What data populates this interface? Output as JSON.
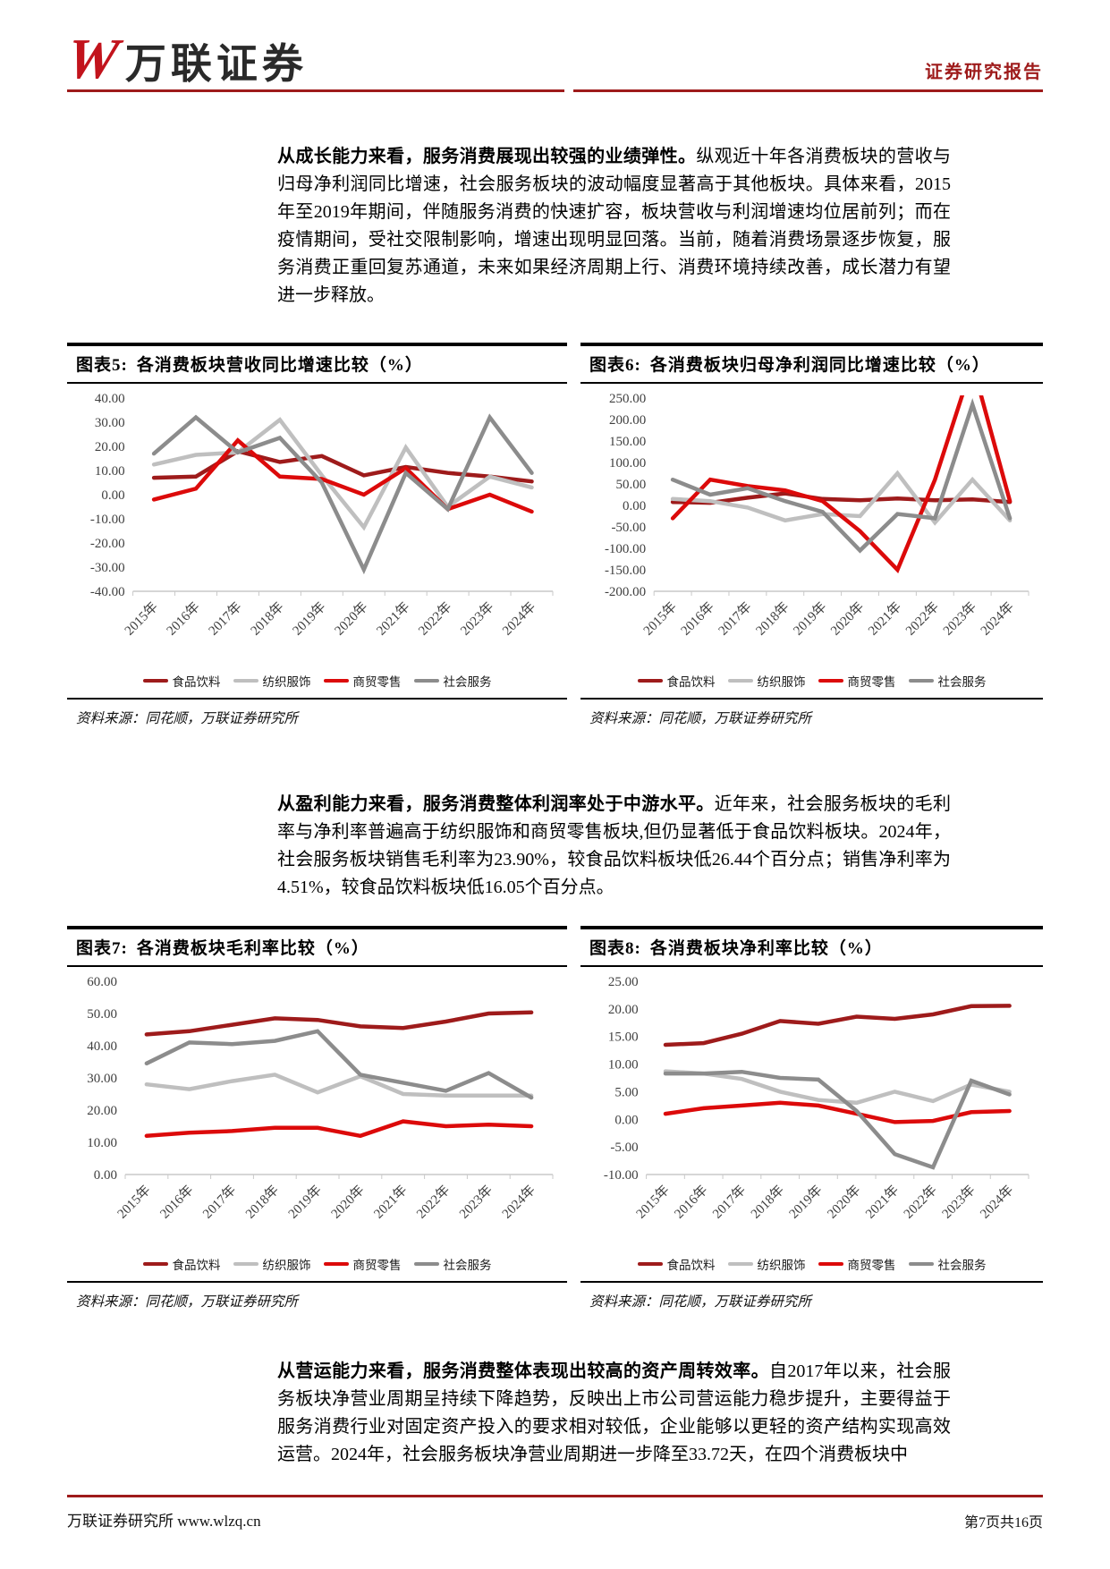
{
  "header": {
    "logo_mark": "W",
    "logo_text": "万联证券",
    "report_type": "证券研究报告"
  },
  "paragraphs": [
    {
      "bold": "从成长能力来看，服务消费展现出较强的业绩弹性。",
      "rest": "纵观近十年各消费板块的营收与归母净利润同比增速，社会服务板块的波动幅度显著高于其他板块。具体来看，2015年至2019年期间，伴随服务消费的快速扩容，板块营收与利润增速均位居前列；而在疫情期间，受社交限制影响，增速出现明显回落。当前，随着消费场景逐步恢复，服务消费正重回复苏通道，未来如果经济周期上行、消费环境持续改善，成长潜力有望进一步释放。"
    },
    {
      "bold": "从盈利能力来看，服务消费整体利润率处于中游水平。",
      "rest": "近年来，社会服务板块的毛利率与净利率普遍高于纺织服饰和商贸零售板块,但仍显著低于食品饮料板块。2024年，社会服务板块销售毛利率为23.90%，较食品饮料板块低26.44个百分点；销售净利率为4.51%，较食品饮料板块低16.05个百分点。"
    },
    {
      "bold": "从营运能力来看，服务消费整体表现出较高的资产周转效率。",
      "rest": "自2017年以来，社会服务板块净营业周期呈持续下降趋势，反映出上市公司营运能力稳步提升，主要得益于服务消费行业对固定资产投入的要求相对较低，企业能够以更轻的资产结构实现高效运营。2024年，社会服务板块净营业周期进一步降至33.72天，在四个消费板块中"
    }
  ],
  "figures": [
    {
      "label": "图表5:",
      "title": "各消费板块营收同比增速比较（%）",
      "source_label": "资料来源：",
      "source": "同花顺，万联证券研究所"
    },
    {
      "label": "图表6:",
      "title": "各消费板块归母净利润同比增速比较（%）",
      "source_label": "资料来源：",
      "source": "同花顺，万联证券研究所"
    },
    {
      "label": "图表7:",
      "title": "各消费板块毛利率比较（%）",
      "source_label": "资料来源：",
      "source": "同花顺，万联证券研究所"
    },
    {
      "label": "图表8:",
      "title": "各消费板块净利率比较（%）",
      "source_label": "资料来源：",
      "source": "同花顺，万联证券研究所"
    }
  ],
  "colors": {
    "food_dark_red": "#9e1b1b",
    "textile_light_gray": "#bfbfbf",
    "trade_bright_red": "#dc0a0a",
    "social_dark_gray": "#8c8c8c",
    "rule_maroon": "#9e1b1b",
    "axis_gray": "#c9c9c9"
  },
  "chart_data": [
    {
      "type": "line",
      "title": "各消费板块营收同比增速比较（%）",
      "categories": [
        "2015年",
        "2016年",
        "2017年",
        "2018年",
        "2019年",
        "2020年",
        "2021年",
        "2022年",
        "2023年",
        "2024年"
      ],
      "series": [
        {
          "name": "食品饮料",
          "color": "#9e1b1b",
          "values": [
            7,
            7.5,
            18,
            13.5,
            16,
            8,
            11.5,
            9,
            7.5,
            5.5
          ]
        },
        {
          "name": "纺织服饰",
          "color": "#bfbfbf",
          "values": [
            12.5,
            16.5,
            17.5,
            31,
            8,
            -13.5,
            19.5,
            -5,
            7.5,
            3
          ]
        },
        {
          "name": "商贸零售",
          "color": "#dc0a0a",
          "values": [
            -2,
            2.5,
            22.5,
            7.5,
            6.5,
            0,
            11,
            -6,
            0,
            -7
          ]
        },
        {
          "name": "社会服务",
          "color": "#8c8c8c",
          "values": [
            17,
            32,
            17.5,
            23.5,
            5,
            -31,
            9,
            -6,
            32,
            9
          ]
        }
      ],
      "ylim": [
        -40,
        40
      ],
      "ytick_step": 10,
      "grid": false,
      "legend_position": "bottom"
    },
    {
      "type": "line",
      "title": "各消费板块归母净利润同比增速比较（%）",
      "categories": [
        "2015年",
        "2016年",
        "2017年",
        "2018年",
        "2019年",
        "2020年",
        "2021年",
        "2022年",
        "2023年",
        "2024年"
      ],
      "series": [
        {
          "name": "食品饮料",
          "color": "#9e1b1b",
          "values": [
            8,
            6,
            18,
            28,
            15,
            12,
            16,
            12,
            14,
            8
          ]
        },
        {
          "name": "纺织服饰",
          "color": "#bfbfbf",
          "values": [
            15,
            10,
            -5,
            -35,
            -20,
            -25,
            75,
            -40,
            60,
            -35
          ]
        },
        {
          "name": "商贸零售",
          "color": "#dc0a0a",
          "values": [
            -30,
            60,
            45,
            35,
            10,
            -60,
            -150,
            60,
            330,
            10
          ]
        },
        {
          "name": "社会服务",
          "color": "#8c8c8c",
          "values": [
            60,
            25,
            40,
            10,
            -15,
            -105,
            -20,
            -30,
            235,
            -30
          ]
        }
      ],
      "ylim": [
        -200,
        250
      ],
      "ytick_step": 50,
      "grid": false,
      "legend_position": "bottom",
      "note": "商贸零售 2023 点超出坐标轴上限，被裁剪在 250 以上"
    },
    {
      "type": "line",
      "title": "各消费板块毛利率比较（%）",
      "categories": [
        "2015年",
        "2016年",
        "2017年",
        "2018年",
        "2019年",
        "2020年",
        "2021年",
        "2022年",
        "2023年",
        "2024年"
      ],
      "series": [
        {
          "name": "食品饮料",
          "color": "#9e1b1b",
          "values": [
            43.5,
            44.5,
            46.5,
            48.5,
            48,
            46,
            45.5,
            47.5,
            50,
            50.34
          ]
        },
        {
          "name": "纺织服饰",
          "color": "#bfbfbf",
          "values": [
            28,
            26.5,
            29,
            31,
            25.5,
            30.5,
            25,
            24.5,
            24.5,
            24.5
          ]
        },
        {
          "name": "商贸零售",
          "color": "#dc0a0a",
          "values": [
            12,
            13,
            13.5,
            14.5,
            14.5,
            12,
            16.5,
            15,
            15.5,
            15
          ]
        },
        {
          "name": "社会服务",
          "color": "#8c8c8c",
          "values": [
            34.5,
            41,
            40.5,
            41.5,
            44.5,
            31,
            28.5,
            26,
            31.5,
            23.9
          ]
        }
      ],
      "ylim": [
        0,
        60
      ],
      "ytick_step": 10,
      "grid": false,
      "legend_position": "bottom"
    },
    {
      "type": "line",
      "title": "各消费板块净利率比较（%）",
      "categories": [
        "2015年",
        "2016年",
        "2017年",
        "2018年",
        "2019年",
        "2020年",
        "2021年",
        "2022年",
        "2023年",
        "2024年"
      ],
      "series": [
        {
          "name": "食品饮料",
          "color": "#9e1b1b",
          "values": [
            13.5,
            13.8,
            15.5,
            17.8,
            17.3,
            18.6,
            18.2,
            19,
            20.5,
            20.56
          ]
        },
        {
          "name": "纺织服饰",
          "color": "#bfbfbf",
          "values": [
            8.7,
            8.3,
            7.3,
            5,
            3.5,
            3,
            5,
            3.3,
            6.3,
            5
          ]
        },
        {
          "name": "商贸零售",
          "color": "#dc0a0a",
          "values": [
            1,
            2,
            2.5,
            3,
            2.5,
            1,
            -0.5,
            -0.3,
            1.3,
            1.5
          ]
        },
        {
          "name": "社会服务",
          "color": "#8c8c8c",
          "values": [
            8.3,
            8.3,
            8.6,
            7.5,
            7.2,
            1.5,
            -6.3,
            -8.7,
            7,
            4.51
          ]
        }
      ],
      "ylim": [
        -10,
        25
      ],
      "ytick_step": 5,
      "grid": false,
      "legend_position": "bottom"
    }
  ],
  "footer": {
    "left": "万联证券研究所 www.wlzq.cn",
    "right": "第7页共16页"
  }
}
